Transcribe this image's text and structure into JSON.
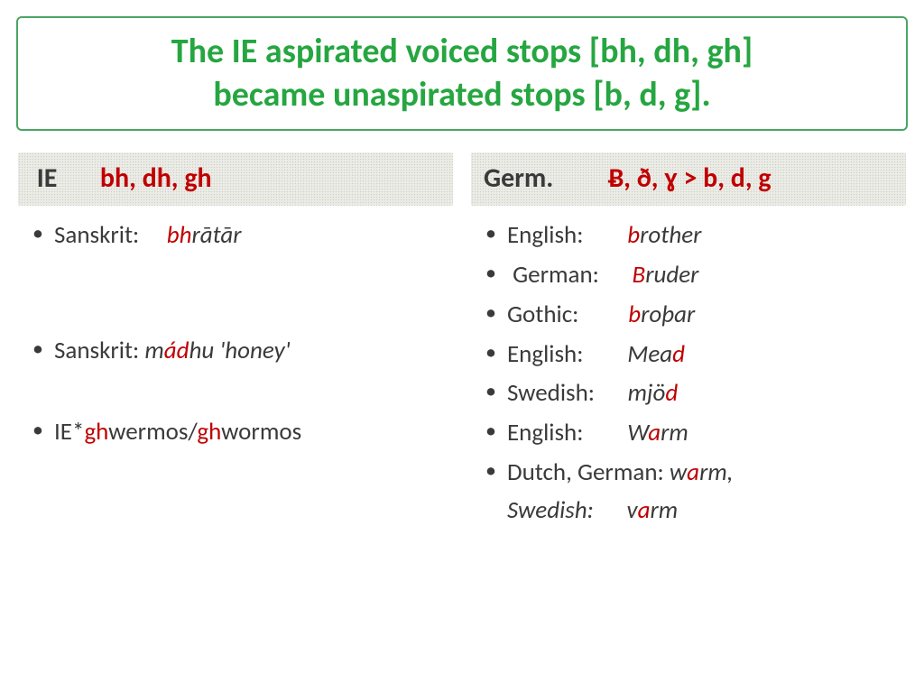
{
  "title": {
    "line1": "The IE aspirated voiced stops [bh, dh, gh]",
    "line2": "became unaspirated stops [b, d, g]."
  },
  "left": {
    "header_prefix": " IE       ",
    "header_hl": "bh, dh, gh",
    "items": [
      {
        "lang": "Sanskrit:     ",
        "pre": "",
        "hl": "bh",
        "post": "rātār",
        "italic": true,
        "cls": ""
      },
      {
        "lang": "Sanskrit: ",
        "pre": "m",
        "hl": "ád",
        "post": "hu 'honey'",
        "italic": true,
        "cls": "spaced-top"
      },
      {
        "lang": "IE*",
        "pre": "",
        "hl": "gh",
        "post": "wermos/",
        "hl2": "gh",
        "post2": "wormos",
        "italic": false,
        "cls": "spaced-top-med"
      }
    ]
  },
  "right": {
    "header_prefix": "Germ.         ",
    "header_mid": "Ƀ, ð, ɣ > ",
    "header_hl": "b, d, g",
    "items": [
      {
        "lang": "English:        ",
        "pre": "",
        "hl": "b",
        "post": "rother",
        "italic": true
      },
      {
        "lang": " German:      ",
        "pre": "",
        "hl": "B",
        "post": "ruder",
        "italic": true
      },
      {
        "lang": "Gothic:         ",
        "pre": "",
        "hl": "b",
        "post": "roþar",
        "italic": true
      },
      {
        "lang": "English:        ",
        "pre": "Mea",
        "hl": "d",
        "post": "",
        "italic": true
      },
      {
        "lang": "Swedish:      ",
        "pre": "mjö",
        "hl": "d",
        "post": "",
        "italic": true
      },
      {
        "lang": "English:        ",
        "pre": "W",
        "hl": "a",
        "post": "rm",
        "italic": true
      },
      {
        "lang": "Dutch, German: ",
        "pre": "w",
        "hl": "a",
        "post": "rm, \nSwedish:      ",
        "pre2": "v",
        "hl2": "a",
        "post2": "rm",
        "italic": true
      }
    ]
  },
  "colors": {
    "title_green": "#26a641",
    "border_green": "#4aa564",
    "highlight_red": "#c00000",
    "text_dark": "#3a3a3a",
    "header_bg": "#e9e9e3"
  },
  "typography": {
    "title_fontsize": 38,
    "header_fontsize": 30,
    "item_fontsize": 27
  }
}
